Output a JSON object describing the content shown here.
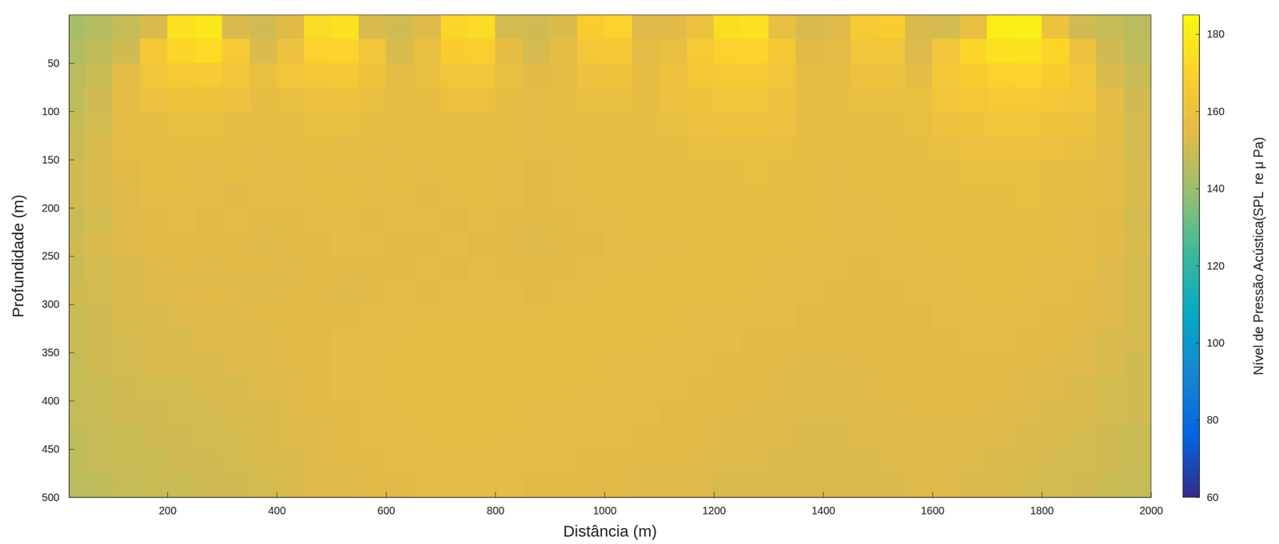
{
  "chart_data": {
    "type": "heatmap",
    "x_label": "Distância (m)",
    "y_label": "Profundidade (m)",
    "xlim": [
      20,
      2000
    ],
    "xticks": [
      200,
      400,
      600,
      800,
      1000,
      1200,
      1400,
      1600,
      1800,
      2000
    ],
    "ylim": [
      0,
      500
    ],
    "yticks": [
      50,
      100,
      150,
      200,
      250,
      300,
      350,
      400,
      450,
      500
    ],
    "colorbar_label": "Nível de Pressão Acústica(SPL  re μ Pa)",
    "colorbar_lim": [
      60,
      185
    ],
    "colorbar_ticks": [
      60,
      80,
      100,
      120,
      140,
      160,
      180
    ],
    "x": [
      25,
      75,
      125,
      175,
      225,
      275,
      325,
      375,
      425,
      475,
      525,
      575,
      625,
      675,
      725,
      775,
      825,
      875,
      925,
      975,
      1025,
      1075,
      1125,
      1175,
      1225,
      1275,
      1325,
      1375,
      1425,
      1475,
      1525,
      1575,
      1625,
      1675,
      1725,
      1775,
      1825,
      1875,
      1925,
      1975
    ],
    "y": [
      12.5,
      37.5,
      62.5,
      87.5,
      112.5,
      137.5,
      162.5,
      187.5,
      212.5,
      237.5,
      262.5,
      287.5,
      312.5,
      337.5,
      362.5,
      387.5,
      412.5,
      437.5,
      462.5,
      487.5
    ],
    "z": [
      [
        142,
        145,
        148,
        152,
        176,
        178,
        152,
        150,
        154,
        174,
        176,
        152,
        150,
        153,
        172,
        174,
        151,
        150,
        152,
        168,
        170,
        153,
        154,
        160,
        175,
        176,
        158,
        152,
        153,
        166,
        168,
        152,
        151,
        158,
        180,
        181,
        160,
        150,
        148,
        146
      ],
      [
        144,
        147,
        150,
        165,
        172,
        174,
        166,
        152,
        160,
        170,
        171,
        162,
        152,
        158,
        168,
        169,
        157,
        151,
        156,
        164,
        165,
        155,
        158,
        166,
        170,
        171,
        165,
        154,
        155,
        162,
        163,
        153,
        162,
        172,
        176,
        177,
        172,
        160,
        150,
        147
      ],
      [
        146,
        149,
        155,
        162,
        166,
        167,
        163,
        158,
        162,
        164,
        165,
        161,
        156,
        158,
        162,
        163,
        158,
        154,
        156,
        160,
        161,
        157,
        160,
        164,
        166,
        166,
        162,
        156,
        157,
        160,
        160,
        156,
        164,
        168,
        170,
        171,
        168,
        163,
        152,
        149
      ],
      [
        147,
        150,
        156,
        159,
        161,
        161,
        160,
        157,
        158,
        160,
        160,
        158,
        156,
        157,
        159,
        159,
        157,
        155,
        156,
        158,
        158,
        157,
        159,
        161,
        162,
        162,
        160,
        157,
        157,
        158,
        158,
        158,
        162,
        164,
        166,
        166,
        164,
        162,
        155,
        150
      ],
      [
        148,
        151,
        155,
        157,
        158,
        158,
        157,
        156,
        157,
        158,
        158,
        157,
        156,
        156,
        157,
        157,
        156,
        155,
        156,
        157,
        157,
        157,
        158,
        159,
        160,
        160,
        159,
        157,
        156,
        157,
        157,
        158,
        160,
        161,
        162,
        162,
        161,
        160,
        156,
        151
      ],
      [
        149,
        152,
        155,
        156,
        157,
        157,
        156,
        155,
        156,
        157,
        156,
        156,
        155,
        156,
        156,
        157,
        156,
        155,
        155,
        156,
        157,
        156,
        157,
        158,
        158,
        158,
        158,
        157,
        156,
        156,
        157,
        157,
        158,
        159,
        159,
        160,
        159,
        158,
        155,
        151
      ],
      [
        150,
        152,
        154,
        156,
        156,
        155,
        156,
        155,
        155,
        156,
        155,
        155,
        156,
        155,
        156,
        156,
        155,
        154,
        155,
        156,
        156,
        156,
        156,
        157,
        157,
        158,
        157,
        156,
        155,
        156,
        156,
        157,
        157,
        158,
        158,
        158,
        157,
        157,
        155,
        152
      ],
      [
        150,
        152,
        153,
        155,
        155,
        155,
        154,
        155,
        155,
        155,
        156,
        155,
        155,
        154,
        155,
        156,
        155,
        154,
        155,
        155,
        156,
        156,
        156,
        156,
        157,
        157,
        157,
        156,
        155,
        155,
        156,
        156,
        157,
        157,
        157,
        158,
        157,
        156,
        155,
        152
      ],
      [
        149,
        151,
        153,
        154,
        155,
        154,
        155,
        154,
        154,
        155,
        155,
        154,
        155,
        155,
        154,
        155,
        154,
        154,
        154,
        155,
        155,
        156,
        156,
        156,
        156,
        157,
        156,
        156,
        155,
        155,
        155,
        156,
        156,
        157,
        157,
        157,
        156,
        155,
        154,
        151
      ],
      [
        150,
        152,
        153,
        154,
        154,
        154,
        154,
        153,
        154,
        154,
        155,
        155,
        154,
        154,
        155,
        154,
        154,
        153,
        154,
        154,
        155,
        155,
        155,
        156,
        156,
        156,
        156,
        155,
        155,
        155,
        155,
        155,
        156,
        156,
        156,
        156,
        156,
        155,
        154,
        152
      ],
      [
        149,
        151,
        152,
        153,
        154,
        153,
        154,
        154,
        153,
        154,
        154,
        154,
        154,
        155,
        154,
        155,
        154,
        154,
        154,
        155,
        155,
        155,
        156,
        156,
        156,
        156,
        155,
        155,
        155,
        154,
        155,
        155,
        155,
        156,
        156,
        156,
        155,
        155,
        153,
        151
      ],
      [
        150,
        151,
        152,
        153,
        153,
        154,
        153,
        153,
        154,
        154,
        153,
        154,
        155,
        154,
        155,
        155,
        155,
        154,
        155,
        155,
        156,
        156,
        156,
        156,
        156,
        155,
        155,
        155,
        154,
        154,
        154,
        155,
        155,
        155,
        156,
        155,
        155,
        154,
        153,
        151
      ],
      [
        149,
        150,
        152,
        152,
        153,
        153,
        153,
        154,
        154,
        154,
        154,
        155,
        155,
        155,
        155,
        155,
        155,
        155,
        156,
        156,
        156,
        156,
        156,
        155,
        155,
        155,
        155,
        154,
        154,
        154,
        154,
        154,
        155,
        155,
        155,
        155,
        154,
        154,
        153,
        151
      ],
      [
        149,
        150,
        151,
        152,
        152,
        153,
        153,
        153,
        154,
        154,
        155,
        155,
        155,
        156,
        156,
        156,
        156,
        156,
        156,
        156,
        156,
        156,
        155,
        155,
        155,
        154,
        154,
        154,
        154,
        154,
        154,
        154,
        154,
        155,
        155,
        154,
        154,
        153,
        152,
        151
      ],
      [
        148,
        150,
        151,
        152,
        152,
        152,
        153,
        153,
        154,
        154,
        155,
        155,
        156,
        156,
        156,
        156,
        156,
        156,
        156,
        156,
        155,
        155,
        155,
        155,
        154,
        154,
        154,
        153,
        153,
        154,
        154,
        154,
        154,
        154,
        154,
        154,
        153,
        153,
        152,
        150
      ],
      [
        148,
        149,
        150,
        151,
        151,
        152,
        152,
        153,
        153,
        154,
        155,
        155,
        156,
        156,
        156,
        156,
        156,
        156,
        156,
        155,
        155,
        155,
        155,
        154,
        154,
        154,
        153,
        153,
        153,
        153,
        154,
        154,
        154,
        154,
        154,
        153,
        153,
        152,
        151,
        150
      ],
      [
        148,
        149,
        150,
        150,
        151,
        151,
        152,
        152,
        153,
        154,
        154,
        155,
        155,
        156,
        156,
        156,
        156,
        155,
        155,
        155,
        155,
        155,
        154,
        154,
        154,
        153,
        153,
        153,
        153,
        153,
        153,
        154,
        154,
        154,
        153,
        153,
        152,
        152,
        151,
        150
      ],
      [
        147,
        148,
        149,
        150,
        150,
        151,
        151,
        152,
        153,
        153,
        154,
        155,
        155,
        155,
        156,
        156,
        155,
        155,
        155,
        155,
        155,
        154,
        154,
        154,
        153,
        153,
        153,
        152,
        152,
        153,
        153,
        153,
        153,
        153,
        153,
        152,
        152,
        151,
        150,
        149
      ],
      [
        147,
        148,
        149,
        149,
        150,
        150,
        151,
        152,
        152,
        153,
        154,
        154,
        155,
        155,
        155,
        155,
        155,
        155,
        155,
        154,
        154,
        154,
        154,
        153,
        153,
        153,
        152,
        152,
        152,
        152,
        153,
        153,
        153,
        153,
        152,
        152,
        151,
        151,
        150,
        149
      ],
      [
        146,
        147,
        148,
        149,
        149,
        150,
        150,
        151,
        152,
        153,
        153,
        154,
        154,
        155,
        155,
        155,
        155,
        154,
        154,
        154,
        154,
        153,
        153,
        153,
        152,
        152,
        152,
        152,
        152,
        152,
        152,
        153,
        153,
        152,
        152,
        151,
        151,
        150,
        149,
        148
      ]
    ]
  }
}
